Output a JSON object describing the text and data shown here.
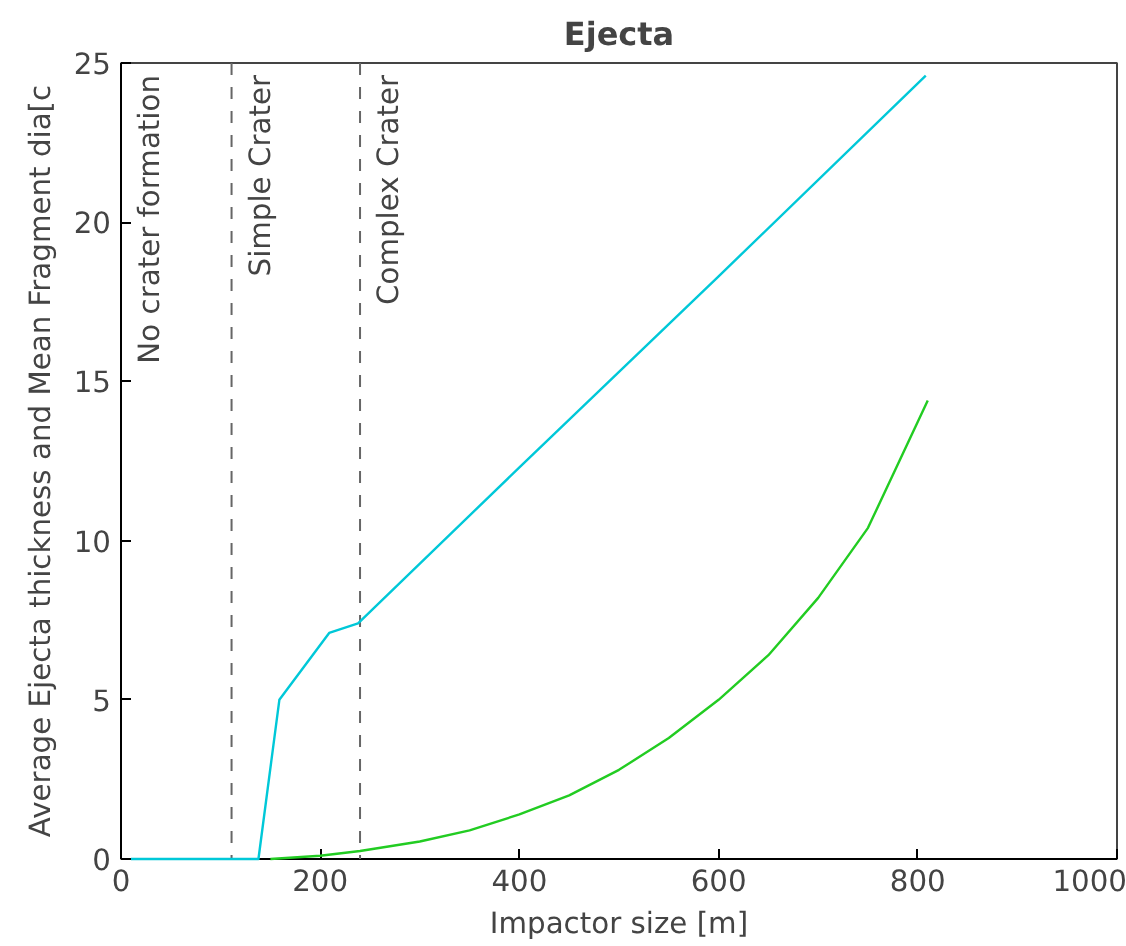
{
  "chart_data": {
    "type": "line",
    "title": "Ejecta",
    "xlabel": "Impactor size [m]",
    "ylabel": "Average Ejecta thickness and Mean Fragment dia[c",
    "xlim": [
      0,
      1000
    ],
    "ylim": [
      0,
      25
    ],
    "xticks": [
      0,
      200,
      400,
      600,
      800,
      1000
    ],
    "yticks": [
      0,
      5,
      10,
      15,
      20,
      25
    ],
    "grid": false,
    "series": [
      {
        "color": "#00c8d8",
        "x": [
          10,
          138,
          159,
          209,
          238,
          400,
          600,
          808
        ],
        "values": [
          0,
          0,
          5.0,
          7.1,
          7.4,
          12.3,
          18.3,
          24.6
        ]
      },
      {
        "color": "#22cc22",
        "x": [
          150,
          200,
          240,
          300,
          350,
          400,
          450,
          500,
          550,
          600,
          650,
          700,
          750,
          810
        ],
        "values": [
          0,
          0.1,
          0.25,
          0.55,
          0.9,
          1.4,
          2.0,
          2.8,
          3.8,
          5.0,
          6.4,
          8.2,
          10.4,
          14.4
        ]
      }
    ],
    "ref_lines": [
      {
        "axis": "x",
        "value": 111,
        "label": "Simple Crater",
        "color": "#666666",
        "line_style": "dashed"
      },
      {
        "axis": "x",
        "value": 240,
        "label": "Complex Crater",
        "color": "#666666",
        "line_style": "dashed"
      }
    ],
    "annotations": [
      "No crater formation"
    ]
  }
}
